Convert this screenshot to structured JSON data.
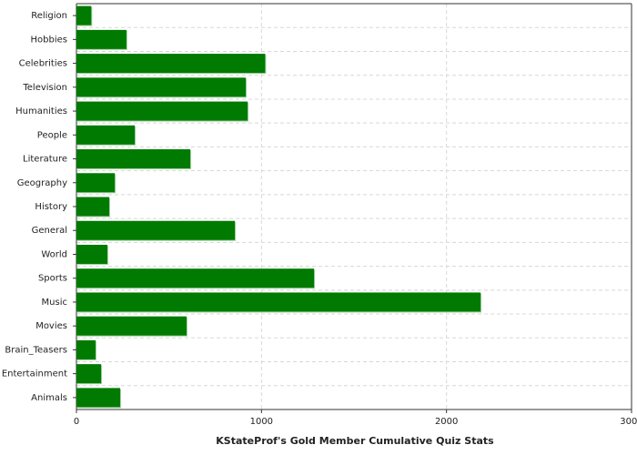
{
  "chart_data": {
    "type": "barh",
    "x_label": "KStateProf's Gold Member Cumulative Quiz Stats",
    "categories": [
      "Religion",
      "Hobbies",
      "Celebrities",
      "Television",
      "Humanities",
      "People",
      "Literature",
      "Geography",
      "History",
      "General",
      "World",
      "Sports",
      "Music",
      "Movies",
      "Brain_Teasers",
      "Entertainment",
      "Animals"
    ],
    "values": [
      80,
      270,
      1020,
      915,
      925,
      315,
      615,
      207,
      177,
      856,
      167,
      1284,
      2184,
      595,
      103,
      133,
      236
    ],
    "color": "#007a00",
    "xlim": [
      0,
      3000
    ],
    "xticks": [
      0,
      1000,
      2000,
      3000
    ],
    "grid": true
  }
}
